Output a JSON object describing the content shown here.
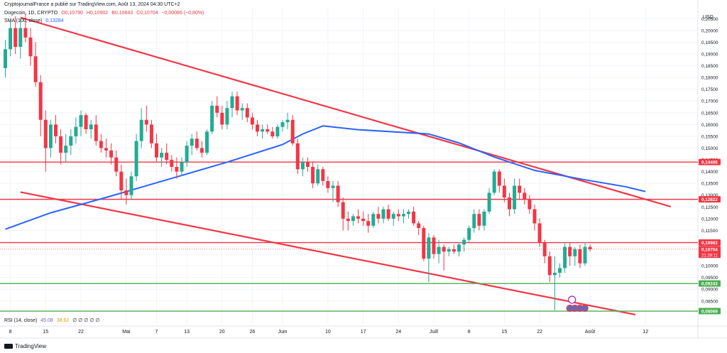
{
  "header": {
    "publisher": "CryptojournalFrance a publié sur TradingView.com, Août 13, 2024 04:30 UTC+2",
    "symbol": "Dogecoin, 1D, CRYPTO",
    "open": "O0,10790",
    "high": "H0,10902",
    "low": "B0,10643",
    "close": "C0,10704",
    "change": "−0,00086 (−0,80%)",
    "sma_label": "SMA (100, close)",
    "sma_value": "0,13284"
  },
  "rsi": {
    "label": "RSI (14, close)",
    "value1": "45,08",
    "value2": "38,62",
    "placeholders": "∅ ∅ ∅ ∅ ∅"
  },
  "footer": {
    "brand": "TradingView"
  },
  "colors": {
    "up": "#22ab94",
    "down": "#f23645",
    "sma": "#2962ff",
    "resistance": "#f23645",
    "support": "#4caf50",
    "trend": "#f23645"
  },
  "chart_data": {
    "type": "candlestick",
    "currency_label": "USD",
    "y_axis": {
      "ylim": [
        0.0795,
        0.2075
      ],
      "ticks": [
        "0,08500",
        "0,09000",
        "0,09500",
        "0,10000",
        "0,10500",
        "0,11000",
        "0,11500",
        "0,12000",
        "0,12500",
        "0,13000",
        "0,13500",
        "0,14000",
        "0,14500",
        "0,15000",
        "0,15500",
        "0,16000",
        "0,16500",
        "0,17000",
        "0,17500",
        "0,18000",
        "0,18500",
        "0,19000",
        "0,19500",
        "0,20000",
        "0,20500"
      ]
    },
    "x_axis": {
      "start_date": "2024-04-07",
      "ticks": [
        {
          "label": "8",
          "date": "2024-04-08"
        },
        {
          "label": "15",
          "date": "2024-04-15"
        },
        {
          "label": "22",
          "date": "2024-04-22"
        },
        {
          "label": "Mai",
          "date": "2024-05-01"
        },
        {
          "label": "7",
          "date": "2024-05-07"
        },
        {
          "label": "13",
          "date": "2024-05-13"
        },
        {
          "label": "20",
          "date": "2024-05-20"
        },
        {
          "label": "26",
          "date": "2024-05-26"
        },
        {
          "label": "Juin",
          "date": "2024-06-01"
        },
        {
          "label": "10",
          "date": "2024-06-10"
        },
        {
          "label": "17",
          "date": "2024-06-17"
        },
        {
          "label": "24",
          "date": "2024-06-24"
        },
        {
          "label": "Juill",
          "date": "2024-07-01"
        },
        {
          "label": "8",
          "date": "2024-07-08"
        },
        {
          "label": "15",
          "date": "2024-07-15"
        },
        {
          "label": "22",
          "date": "2024-07-22"
        },
        {
          "label": "Août",
          "date": "2024-08-01"
        },
        {
          "label": "12",
          "date": "2024-08-12"
        }
      ]
    },
    "candles": [
      [
        0.184,
        0.196,
        0.18,
        0.192
      ],
      [
        0.192,
        0.204,
        0.189,
        0.201
      ],
      [
        0.201,
        0.206,
        0.19,
        0.193
      ],
      [
        0.193,
        0.205,
        0.188,
        0.201
      ],
      [
        0.201,
        0.207,
        0.195,
        0.197
      ],
      [
        0.197,
        0.201,
        0.185,
        0.189
      ],
      [
        0.189,
        0.195,
        0.176,
        0.178
      ],
      [
        0.178,
        0.181,
        0.155,
        0.162
      ],
      [
        0.162,
        0.166,
        0.14,
        0.15
      ],
      [
        0.15,
        0.162,
        0.146,
        0.16
      ],
      [
        0.16,
        0.164,
        0.152,
        0.155
      ],
      [
        0.155,
        0.158,
        0.143,
        0.148
      ],
      [
        0.148,
        0.156,
        0.144,
        0.151
      ],
      [
        0.151,
        0.158,
        0.147,
        0.155
      ],
      [
        0.155,
        0.163,
        0.152,
        0.159
      ],
      [
        0.159,
        0.166,
        0.155,
        0.164
      ],
      [
        0.164,
        0.165,
        0.156,
        0.158
      ],
      [
        0.158,
        0.162,
        0.154,
        0.16
      ],
      [
        0.16,
        0.164,
        0.151,
        0.153
      ],
      [
        0.153,
        0.156,
        0.148,
        0.15
      ],
      [
        0.15,
        0.154,
        0.146,
        0.149
      ],
      [
        0.149,
        0.152,
        0.143,
        0.146
      ],
      [
        0.146,
        0.149,
        0.138,
        0.14
      ],
      [
        0.14,
        0.143,
        0.128,
        0.132
      ],
      [
        0.132,
        0.137,
        0.126,
        0.13
      ],
      [
        0.13,
        0.14,
        0.128,
        0.138
      ],
      [
        0.138,
        0.156,
        0.136,
        0.153
      ],
      [
        0.153,
        0.167,
        0.15,
        0.162
      ],
      [
        0.162,
        0.168,
        0.157,
        0.16
      ],
      [
        0.16,
        0.162,
        0.15,
        0.152
      ],
      [
        0.152,
        0.156,
        0.144,
        0.146
      ],
      [
        0.146,
        0.15,
        0.142,
        0.148
      ],
      [
        0.148,
        0.152,
        0.143,
        0.145
      ],
      [
        0.145,
        0.147,
        0.14,
        0.142
      ],
      [
        0.142,
        0.146,
        0.137,
        0.14
      ],
      [
        0.14,
        0.146,
        0.138,
        0.144
      ],
      [
        0.144,
        0.153,
        0.142,
        0.151
      ],
      [
        0.151,
        0.156,
        0.147,
        0.154
      ],
      [
        0.154,
        0.157,
        0.149,
        0.15
      ],
      [
        0.15,
        0.153,
        0.146,
        0.148
      ],
      [
        0.148,
        0.158,
        0.147,
        0.157
      ],
      [
        0.157,
        0.17,
        0.156,
        0.168
      ],
      [
        0.168,
        0.172,
        0.163,
        0.165
      ],
      [
        0.165,
        0.168,
        0.158,
        0.16
      ],
      [
        0.16,
        0.17,
        0.158,
        0.167
      ],
      [
        0.167,
        0.174,
        0.163,
        0.172
      ],
      [
        0.172,
        0.174,
        0.164,
        0.166
      ],
      [
        0.166,
        0.169,
        0.162,
        0.167
      ],
      [
        0.167,
        0.169,
        0.161,
        0.163
      ],
      [
        0.163,
        0.165,
        0.158,
        0.16
      ],
      [
        0.16,
        0.162,
        0.155,
        0.157
      ],
      [
        0.157,
        0.16,
        0.154,
        0.158
      ],
      [
        0.158,
        0.16,
        0.156,
        0.157
      ],
      [
        0.157,
        0.159,
        0.154,
        0.155
      ],
      [
        0.155,
        0.16,
        0.154,
        0.159
      ],
      [
        0.159,
        0.162,
        0.157,
        0.161
      ],
      [
        0.161,
        0.165,
        0.158,
        0.162
      ],
      [
        0.162,
        0.164,
        0.151,
        0.152
      ],
      [
        0.152,
        0.154,
        0.139,
        0.141
      ],
      [
        0.141,
        0.146,
        0.138,
        0.144
      ],
      [
        0.144,
        0.146,
        0.14,
        0.142
      ],
      [
        0.142,
        0.144,
        0.133,
        0.135
      ],
      [
        0.135,
        0.143,
        0.134,
        0.141
      ],
      [
        0.141,
        0.142,
        0.134,
        0.136
      ],
      [
        0.136,
        0.138,
        0.131,
        0.133
      ],
      [
        0.133,
        0.136,
        0.127,
        0.134
      ],
      [
        0.134,
        0.136,
        0.125,
        0.127
      ],
      [
        0.127,
        0.129,
        0.115,
        0.12
      ],
      [
        0.12,
        0.123,
        0.115,
        0.119
      ],
      [
        0.119,
        0.122,
        0.117,
        0.121
      ],
      [
        0.121,
        0.124,
        0.118,
        0.12
      ],
      [
        0.12,
        0.123,
        0.117,
        0.119
      ],
      [
        0.119,
        0.122,
        0.114,
        0.117
      ],
      [
        0.117,
        0.123,
        0.116,
        0.122
      ],
      [
        0.122,
        0.125,
        0.118,
        0.12
      ],
      [
        0.12,
        0.125,
        0.118,
        0.124
      ],
      [
        0.124,
        0.126,
        0.119,
        0.12
      ],
      [
        0.12,
        0.123,
        0.117,
        0.122
      ],
      [
        0.122,
        0.124,
        0.119,
        0.121
      ],
      [
        0.121,
        0.124,
        0.118,
        0.122
      ],
      [
        0.122,
        0.124,
        0.12,
        0.123
      ],
      [
        0.123,
        0.125,
        0.117,
        0.118
      ],
      [
        0.118,
        0.119,
        0.113,
        0.116
      ],
      [
        0.116,
        0.117,
        0.102,
        0.103
      ],
      [
        0.103,
        0.114,
        0.093,
        0.112
      ],
      [
        0.112,
        0.113,
        0.103,
        0.105
      ],
      [
        0.105,
        0.111,
        0.101,
        0.108
      ],
      [
        0.108,
        0.109,
        0.098,
        0.106
      ],
      [
        0.106,
        0.108,
        0.104,
        0.107
      ],
      [
        0.107,
        0.109,
        0.105,
        0.106
      ],
      [
        0.106,
        0.11,
        0.104,
        0.109
      ],
      [
        0.109,
        0.112,
        0.106,
        0.111
      ],
      [
        0.111,
        0.117,
        0.11,
        0.116
      ],
      [
        0.116,
        0.124,
        0.114,
        0.122
      ],
      [
        0.122,
        0.124,
        0.115,
        0.117
      ],
      [
        0.117,
        0.124,
        0.115,
        0.123
      ],
      [
        0.123,
        0.133,
        0.122,
        0.131
      ],
      [
        0.131,
        0.141,
        0.13,
        0.14
      ],
      [
        0.14,
        0.141,
        0.131,
        0.134
      ],
      [
        0.134,
        0.137,
        0.127,
        0.129
      ],
      [
        0.129,
        0.131,
        0.121,
        0.124
      ],
      [
        0.124,
        0.137,
        0.122,
        0.134
      ],
      [
        0.134,
        0.137,
        0.128,
        0.131
      ],
      [
        0.131,
        0.133,
        0.126,
        0.128
      ],
      [
        0.128,
        0.13,
        0.122,
        0.124
      ],
      [
        0.124,
        0.126,
        0.115,
        0.118
      ],
      [
        0.118,
        0.12,
        0.108,
        0.11
      ],
      [
        0.11,
        0.111,
        0.101,
        0.104
      ],
      [
        0.104,
        0.106,
        0.093,
        0.096
      ],
      [
        0.096,
        0.104,
        0.081,
        0.097
      ],
      [
        0.097,
        0.101,
        0.095,
        0.099
      ],
      [
        0.099,
        0.11,
        0.097,
        0.108
      ],
      [
        0.108,
        0.11,
        0.1,
        0.104
      ],
      [
        0.104,
        0.108,
        0.1,
        0.107
      ],
      [
        0.107,
        0.109,
        0.099,
        0.101
      ],
      [
        0.101,
        0.11,
        0.1,
        0.108
      ],
      [
        0.108,
        0.109,
        0.106,
        0.107
      ]
    ],
    "sma_100": [
      {
        "date": "2024-04-07",
        "value": 0.1155
      },
      {
        "date": "2024-04-16",
        "value": 0.1225
      },
      {
        "date": "2024-04-27",
        "value": 0.129
      },
      {
        "date": "2024-05-09",
        "value": 0.1365
      },
      {
        "date": "2024-05-21",
        "value": 0.144
      },
      {
        "date": "2024-06-01",
        "value": 0.1515
      },
      {
        "date": "2024-06-05",
        "value": 0.156
      },
      {
        "date": "2024-06-09",
        "value": 0.1594
      },
      {
        "date": "2024-06-16",
        "value": 0.1578
      },
      {
        "date": "2024-06-30",
        "value": 0.156
      },
      {
        "date": "2024-07-06",
        "value": 0.1522
      },
      {
        "date": "2024-07-13",
        "value": 0.1462
      },
      {
        "date": "2024-07-21",
        "value": 0.1405
      },
      {
        "date": "2024-07-31",
        "value": 0.1365
      },
      {
        "date": "2024-08-08",
        "value": 0.1336
      },
      {
        "date": "2024-08-12",
        "value": 0.1315
      }
    ],
    "trendlines": [
      {
        "from": {
          "date": "2024-04-10",
          "value": 0.2055
        },
        "to": {
          "date": "2024-08-17",
          "value": 0.1251
        }
      },
      {
        "from": {
          "date": "2024-04-10",
          "value": 0.1313
        },
        "to": {
          "date": "2024-08-10",
          "value": 0.0792
        }
      }
    ],
    "levels": [
      {
        "value": 0.14406,
        "label": "0,14406",
        "kind": "resistance"
      },
      {
        "value": 0.12822,
        "label": "0,12822",
        "kind": "resistance"
      },
      {
        "value": 0.10983,
        "label": "0,10983",
        "kind": "resistance"
      },
      {
        "value": 0.09243,
        "label": "0,09243",
        "kind": "support"
      },
      {
        "value": 0.08069,
        "label": "0,08069",
        "kind": "support"
      }
    ],
    "last_price": {
      "value": 0.10704,
      "label": "0,10704",
      "countdown": "21:29:11"
    }
  }
}
